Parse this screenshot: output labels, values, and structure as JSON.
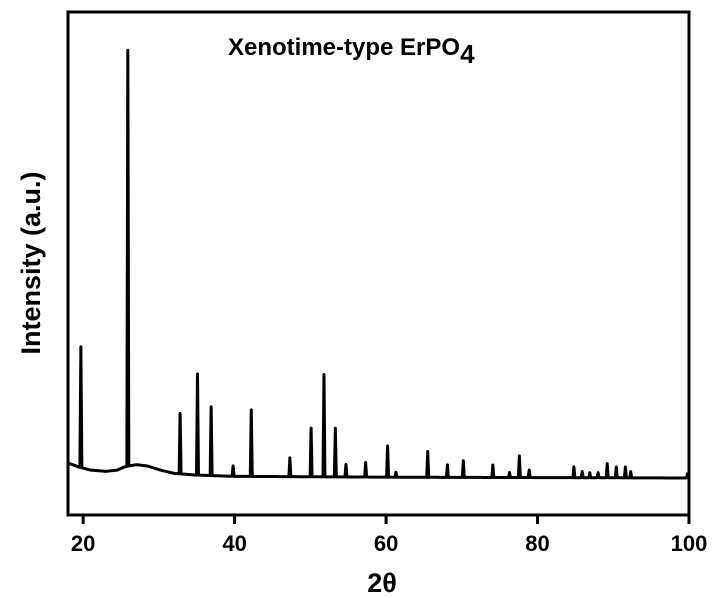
{
  "chart_data": {
    "type": "line",
    "title": "Xenotime-type ErPO",
    "title_subscript": "4",
    "xlabel": "2θ",
    "ylabel": "Intensity (a.u.)",
    "xlim": [
      18,
      100
    ],
    "ylim": [
      0,
      100
    ],
    "x_ticks": [
      20,
      40,
      60,
      80,
      100
    ],
    "x_tick_labels": [
      "20",
      "40",
      "60",
      "80",
      "100"
    ],
    "y_ticks_shown": false,
    "grid": false,
    "line_color": "#000000",
    "baseline": [
      [
        18,
        3.6
      ],
      [
        19.5,
        2.6
      ],
      [
        21,
        1.9
      ],
      [
        23,
        1.6
      ],
      [
        24.5,
        1.9
      ],
      [
        25.5,
        2.7
      ],
      [
        27,
        3.2
      ],
      [
        28.5,
        2.9
      ],
      [
        30,
        2.0
      ],
      [
        32,
        1.1
      ],
      [
        35,
        0.7
      ],
      [
        40,
        0.4
      ],
      [
        50,
        0.3
      ],
      [
        60,
        0.2
      ],
      [
        70,
        0.15
      ],
      [
        80,
        0.1
      ],
      [
        90,
        0.05
      ],
      [
        100,
        0.0
      ]
    ],
    "peaks": [
      {
        "x": 19.7,
        "y": 29.0
      },
      {
        "x": 25.9,
        "y": 100.0
      },
      {
        "x": 32.8,
        "y": 14.5
      },
      {
        "x": 35.1,
        "y": 24.3
      },
      {
        "x": 36.9,
        "y": 16.5
      },
      {
        "x": 39.8,
        "y": 2.5
      },
      {
        "x": 42.2,
        "y": 16.0
      },
      {
        "x": 47.3,
        "y": 4.5
      },
      {
        "x": 50.1,
        "y": 11.7
      },
      {
        "x": 51.8,
        "y": 24.6
      },
      {
        "x": 53.3,
        "y": 11.7
      },
      {
        "x": 54.7,
        "y": 3.0
      },
      {
        "x": 57.3,
        "y": 3.5
      },
      {
        "x": 60.2,
        "y": 7.5
      },
      {
        "x": 61.3,
        "y": 1.2
      },
      {
        "x": 65.5,
        "y": 6.2
      },
      {
        "x": 68.1,
        "y": 3.0
      },
      {
        "x": 70.2,
        "y": 4.0
      },
      {
        "x": 74.1,
        "y": 3.0
      },
      {
        "x": 76.3,
        "y": 1.2
      },
      {
        "x": 77.6,
        "y": 5.2
      },
      {
        "x": 78.9,
        "y": 1.8
      },
      {
        "x": 84.8,
        "y": 2.6
      },
      {
        "x": 85.9,
        "y": 1.5
      },
      {
        "x": 86.9,
        "y": 1.2
      },
      {
        "x": 88.0,
        "y": 1.2
      },
      {
        "x": 89.2,
        "y": 3.4
      },
      {
        "x": 90.4,
        "y": 2.6
      },
      {
        "x": 91.6,
        "y": 2.6
      },
      {
        "x": 92.3,
        "y": 1.5
      },
      {
        "x": 99.8,
        "y": 1.0
      }
    ]
  }
}
